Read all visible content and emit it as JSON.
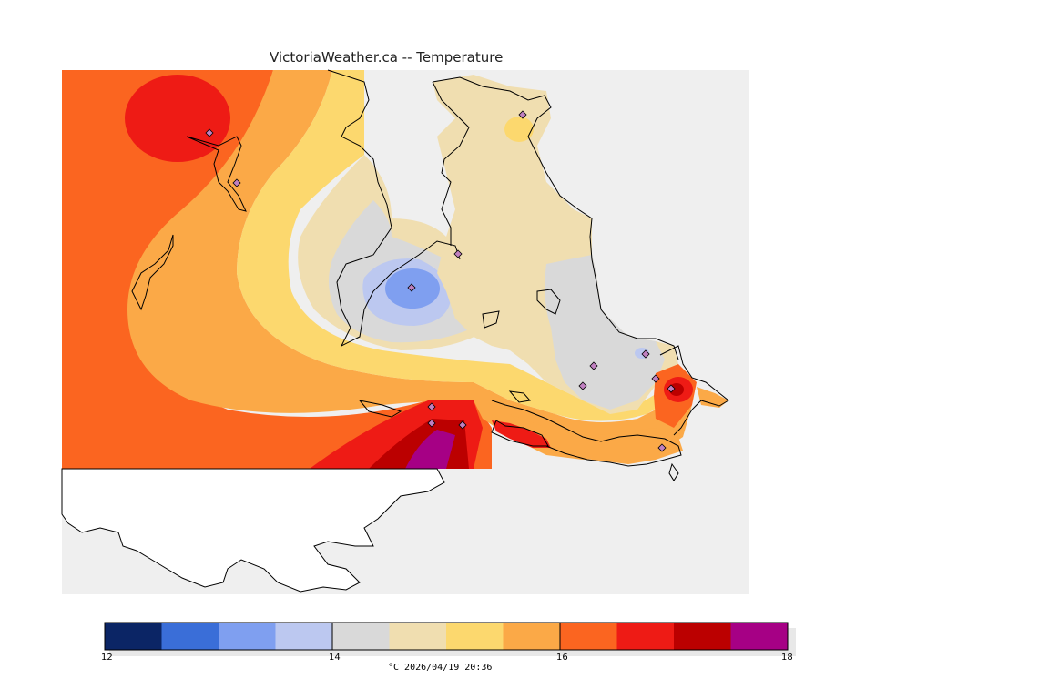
{
  "title": "VictoriaWeather.ca -- Temperature",
  "legend": {
    "min": 12,
    "max": 18,
    "step": 0.5,
    "colors": [
      "#0b2565",
      "#3a6ed8",
      "#7f9ff0",
      "#bcc8f0",
      "#d9d9d9",
      "#f0deb0",
      "#fcd86e",
      "#fba947",
      "#fb6520",
      "#ee1b15",
      "#bb0000",
      "#a60085"
    ],
    "tick_labels": [
      "12",
      "14",
      "16",
      "18"
    ],
    "unit": "°C",
    "timestamp": "2026/04/19 20:36"
  },
  "caption": "°C  2026/04/19 20:36",
  "map_colors": {
    "land_blank": "#ffffff",
    "outside_data": "#efefef",
    "coastline": "#000000",
    "station_marker": "#c080c0"
  },
  "stations": [
    {
      "id": "st1",
      "lon": 230,
      "lat": 146
    },
    {
      "id": "st2",
      "lon": 260,
      "lat": 201
    },
    {
      "id": "st3",
      "lon": 574,
      "lat": 126
    },
    {
      "id": "st4",
      "lon": 503,
      "lat": 279
    },
    {
      "id": "st5",
      "lon": 452,
      "lat": 316
    },
    {
      "id": "st6",
      "lon": 709,
      "lat": 389
    },
    {
      "id": "st7",
      "lon": 652,
      "lat": 402
    },
    {
      "id": "st8",
      "lon": 720,
      "lat": 416
    },
    {
      "id": "st9",
      "lon": 640,
      "lat": 424
    },
    {
      "id": "st10",
      "lon": 737,
      "lat": 427
    },
    {
      "id": "st11",
      "lon": 474,
      "lat": 447
    },
    {
      "id": "st12",
      "lon": 474,
      "lat": 465
    },
    {
      "id": "st13",
      "lon": 508,
      "lat": 467
    },
    {
      "id": "st14",
      "lon": 727,
      "lat": 492
    }
  ]
}
